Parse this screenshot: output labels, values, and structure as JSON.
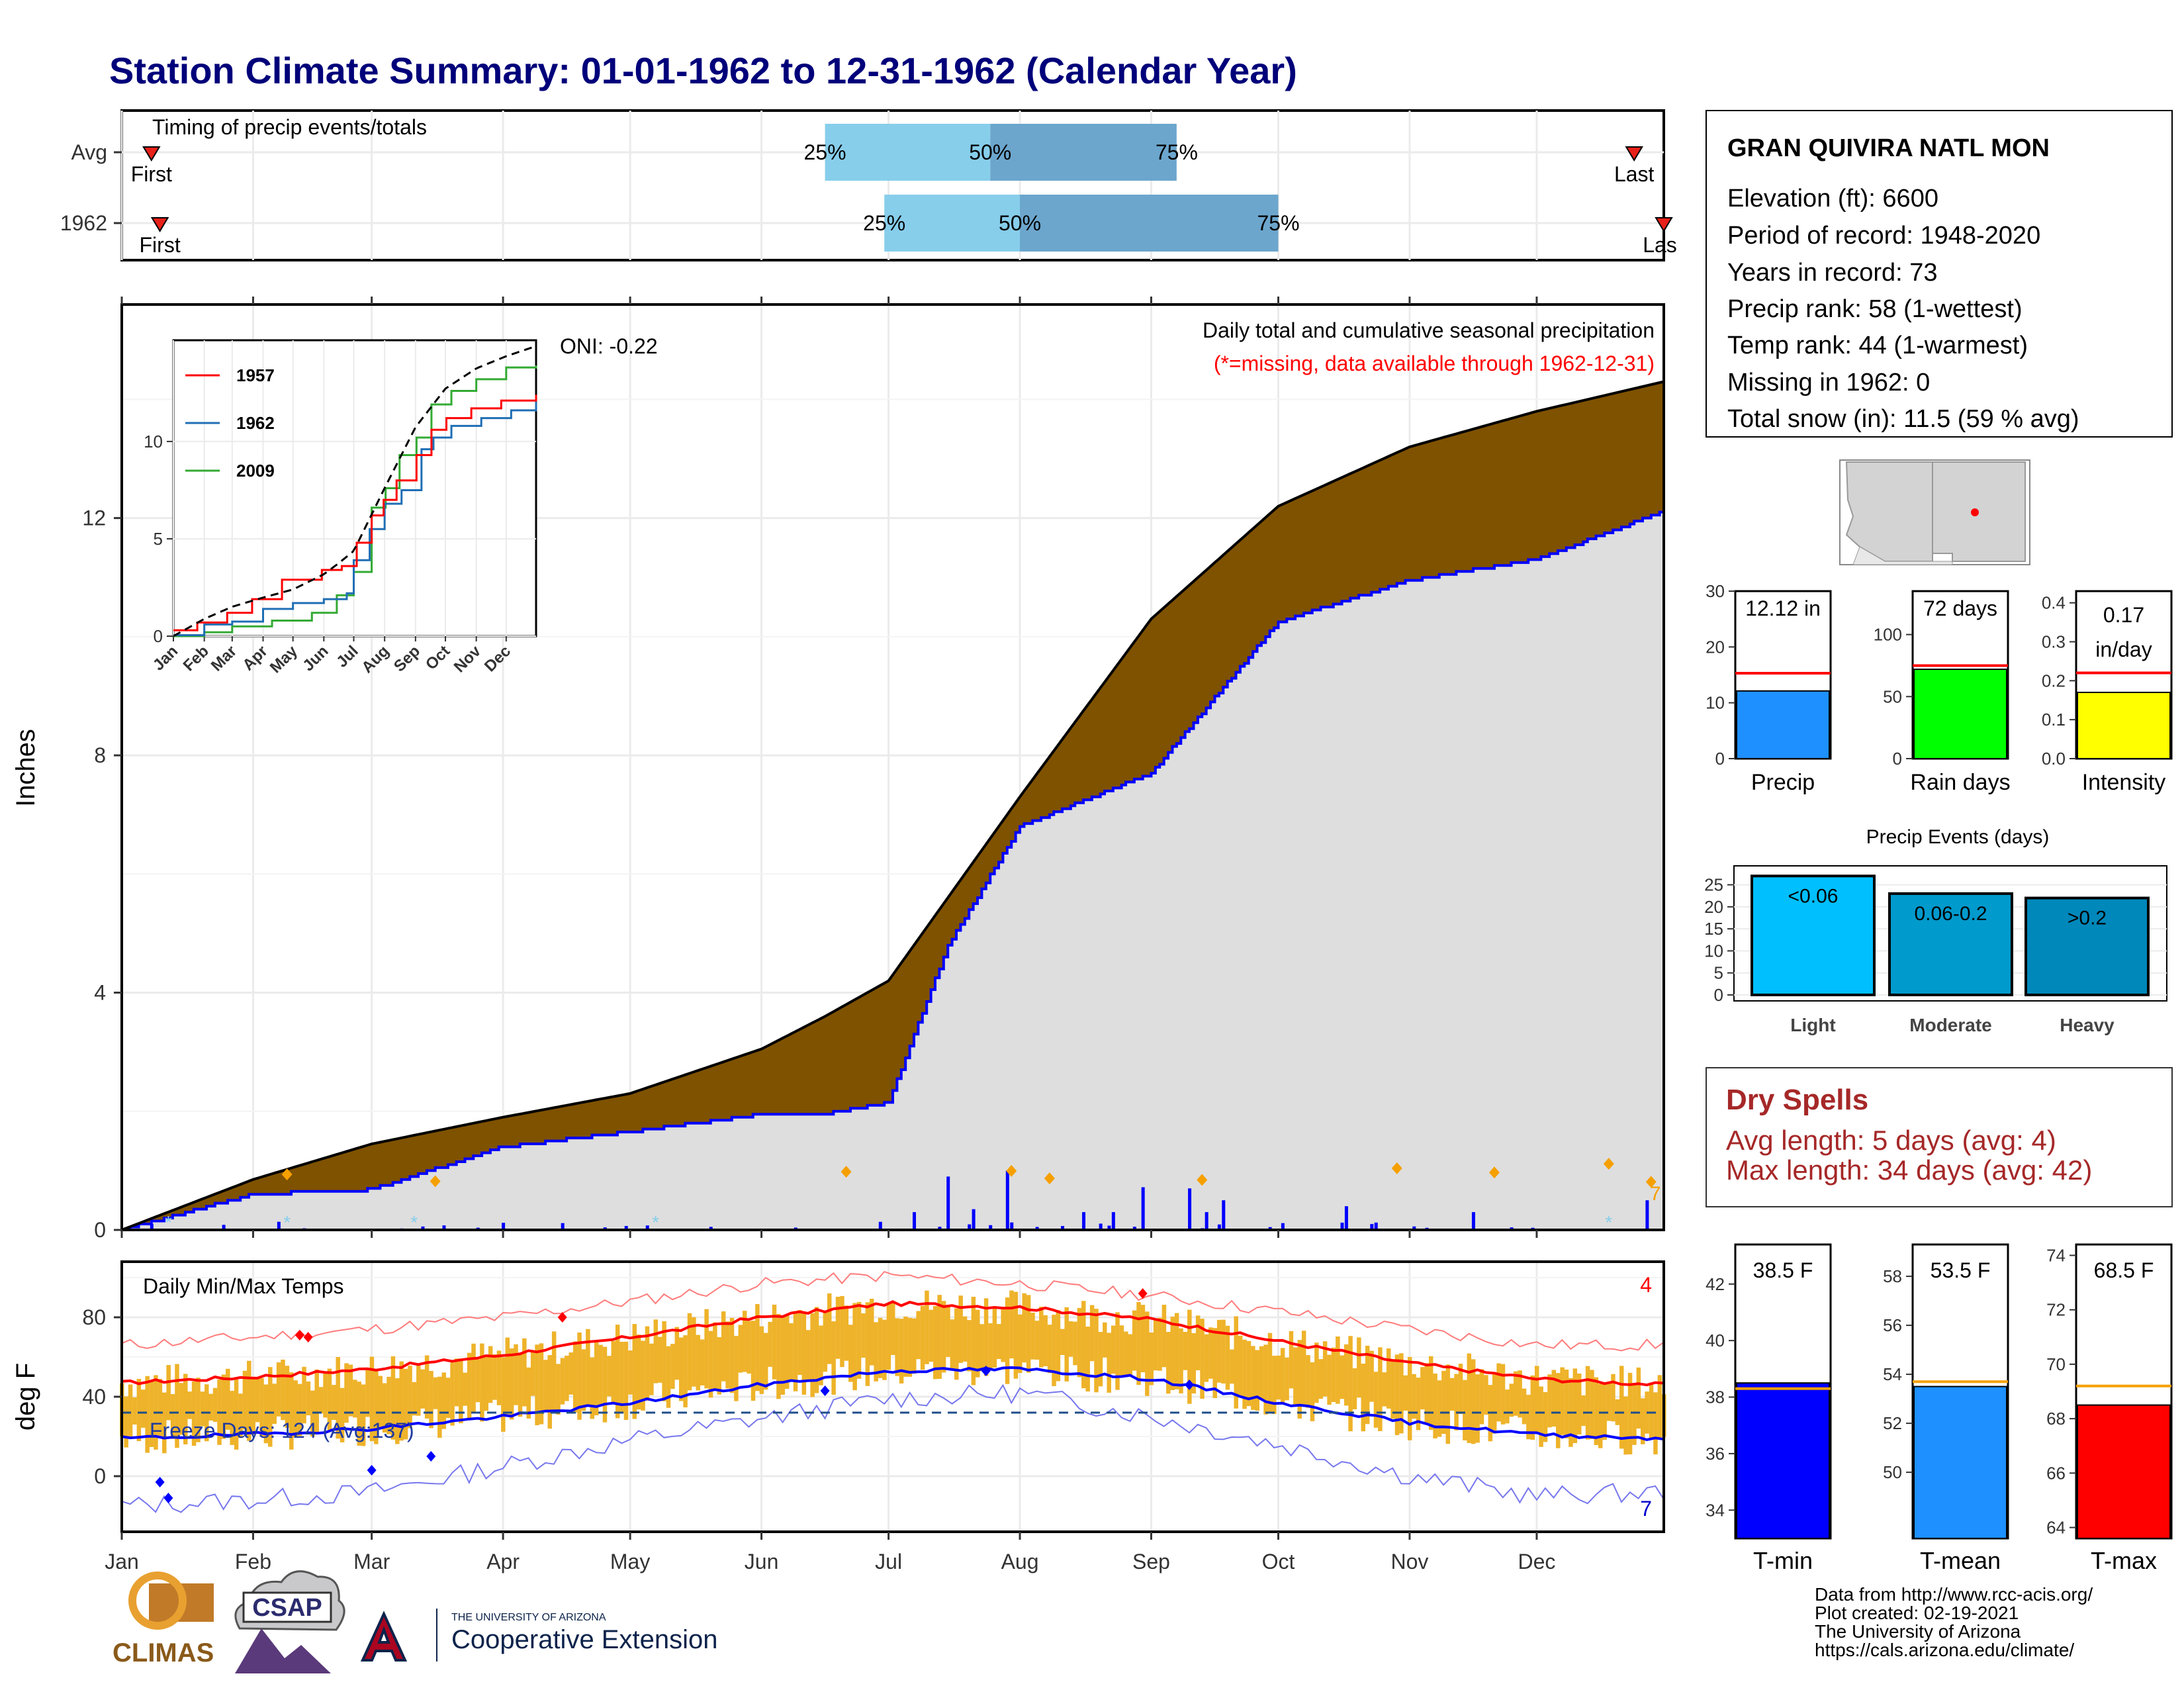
{
  "page_title": "Station Climate Summary: 01-01-1962 to 12-31-1962 (Calendar Year)",
  "colors": {
    "title": "#00007a",
    "brown": "#7f5200",
    "grey_fill": "#dedede",
    "blue": "#0000ff",
    "red": "#ff0000",
    "orange": "#f5a000",
    "temp_bar": "#eeb32a",
    "dark_red": "#a62828",
    "precip_bar": "#1e90ff",
    "rain_bar": "#00ff00",
    "intensity_bar": "#ffff00",
    "light_bar": "#00bfff",
    "moderate_bar": "#009acd",
    "heavy_bar": "#0088bb",
    "tmin_bar": "#0000ff",
    "tmean_bar": "#1e90ff",
    "tmax_bar": "#ff0000",
    "timing_light": "#87ceeb",
    "timing_dark": "#6ca6cd"
  },
  "station": {
    "name": "GRAN QUIVIRA NATL MON",
    "lines": [
      "Elevation (ft): 6600",
      "Period of record: 1948-2020",
      "Years in record: 73",
      "Precip rank: 58 (1-wettest)",
      "Temp rank: 44 (1-warmest)",
      "Missing in 1962: 0",
      "Total snow (in): 11.5 (59 % avg)"
    ]
  },
  "months": [
    "Jan",
    "Feb",
    "Mar",
    "Apr",
    "May",
    "Jun",
    "Jul",
    "Aug",
    "Sep",
    "Oct",
    "Nov",
    "Dec"
  ],
  "timing": {
    "title": "Timing of precip events/totals",
    "rows": [
      {
        "label": "Avg",
        "first_label": "First",
        "last_label": "Last",
        "first_doy": 8,
        "last_doy": 358,
        "q25_doy": 167,
        "q50_doy": 206,
        "q75_doy": 250,
        "q25": "25%",
        "q50": "50%",
        "q75": "75%"
      },
      {
        "label": "1962",
        "first_label": "First",
        "last_label": "Las",
        "first_doy": 10,
        "last_doy": 365,
        "q25_doy": 181,
        "q50_doy": 213,
        "q75_doy": 274,
        "q25": "25%",
        "q50": "50%",
        "q75": "75%"
      }
    ]
  },
  "precip": {
    "ylabel": "Inches",
    "title": "Daily total and cumulative seasonal precipitation",
    "subtitle": "(*=missing, data available through 1962-12-31)",
    "oni": "ONI: -0.22",
    "inset_series": [
      {
        "name": "1957",
        "color": "#ff0000"
      },
      {
        "name": "1962",
        "color": "#1f6eb4"
      },
      {
        "name": "2009",
        "color": "#33aa33"
      }
    ],
    "inset_month_labels": [
      "Jan",
      "Feb",
      "Mar",
      "Apr",
      "May",
      "Jun",
      "Jul",
      "Aug",
      "Sep",
      "Oct",
      "Nov",
      "Dec"
    ]
  },
  "temps": {
    "ylabel": "deg F",
    "title": "Daily Min/Max Temps",
    "freeze_label": "Freeze Days: 124 (Avg:137)",
    "count_top": "4",
    "count_bottom": "7"
  },
  "summary_bars": [
    {
      "label": "Precip",
      "value_text": "12.12 in",
      "value": 12.12,
      "avg": 15.3,
      "ymax": 30,
      "ticks": [
        "0",
        "10",
        "20",
        "30"
      ]
    },
    {
      "label": "Rain days",
      "value_text": "72 days",
      "value": 72,
      "avg": 75,
      "ymax": 135,
      "ticks": [
        "0",
        "50",
        "100"
      ]
    },
    {
      "label": "Intensity",
      "value_text": "0.17 in/day",
      "value": 0.17,
      "avg": 0.22,
      "ymax": 0.43,
      "ticks": [
        "0.0",
        "0.1",
        "0.2",
        "0.3",
        "0.4"
      ]
    }
  ],
  "events": {
    "title": "Precip Events (days)",
    "categories": [
      "Light",
      "Moderate",
      "Heavy"
    ],
    "values": [
      27,
      23,
      22
    ],
    "labels": [
      "<0.06",
      "0.06-0.2",
      ">0.2"
    ],
    "ticks": [
      "0",
      "5",
      "10",
      "15",
      "20",
      "25"
    ]
  },
  "dry_spells": {
    "title": "Dry Spells",
    "avg_line": "Avg length: 5 days (avg: 4)",
    "max_line": "Max length: 34 days (avg: 42)"
  },
  "temp_summary": [
    {
      "label": "T-min",
      "value_text": "38.5 F",
      "value": 38.5,
      "avg": 38.3,
      "ymin": 33.0,
      "ymax": 43.4,
      "ticks": [
        "34",
        "36",
        "38",
        "40",
        "42"
      ]
    },
    {
      "label": "T-mean",
      "value_text": "53.5 F",
      "value": 53.5,
      "avg": 53.7,
      "ymin": 47.3,
      "ymax": 59.3,
      "ticks": [
        "50",
        "52",
        "54",
        "56",
        "58"
      ]
    },
    {
      "label": "T-max",
      "value_text": "68.5 F",
      "value": 68.5,
      "avg": 69.2,
      "ymin": 63.6,
      "ymax": 74.4,
      "ticks": [
        "64",
        "66",
        "68",
        "70",
        "72",
        "74"
      ]
    }
  ],
  "footer": {
    "lines": [
      "Data from http://www.rcc-acis.org/",
      "Plot created: 02-19-2021",
      "The University of Arizona",
      "https://cals.arizona.edu/climate/"
    ]
  },
  "logos": {
    "climas": "CLIMAS",
    "csap": "CSAP",
    "ua_small": "THE UNIVERSITY OF ARIZONA",
    "ua_big": "Cooperative Extension"
  },
  "chart_data": [
    {
      "type": "bar",
      "title": "Timing of precip events/totals",
      "categories": [
        "Avg",
        "1962"
      ],
      "series": [
        {
          "name": "25%",
          "values": [
            167,
            181
          ]
        },
        {
          "name": "50%",
          "values": [
            206,
            213
          ]
        },
        {
          "name": "75%",
          "values": [
            250,
            274
          ]
        }
      ]
    },
    {
      "type": "area",
      "title": "Daily total and cumulative seasonal precipitation",
      "ylabel": "Inches",
      "ylim": [
        0,
        15.6
      ],
      "yticks": [
        0,
        4,
        8,
        12
      ],
      "x_doy": [
        1,
        32,
        60,
        91,
        121,
        152,
        167,
        182,
        196,
        213,
        244,
        274,
        305,
        335,
        365
      ],
      "series": [
        {
          "name": "Average cumulative",
          "values": [
            0,
            0.85,
            1.45,
            1.9,
            2.3,
            3.05,
            3.6,
            4.2,
            5.6,
            7.3,
            10.3,
            12.2,
            13.2,
            13.8,
            14.3
          ]
        },
        {
          "name": "1962 cumulative",
          "values": [
            0,
            0.6,
            0.68,
            1.4,
            1.65,
            1.95,
            1.95,
            2.15,
            4.8,
            6.8,
            7.7,
            10.25,
            10.95,
            11.3,
            12.12
          ]
        }
      ]
    },
    {
      "type": "line",
      "title": "Daily Min/Max Temps",
      "ylabel": "deg F",
      "ylim": [
        -28,
        108
      ],
      "yticks": [
        0,
        40,
        80
      ],
      "freeze_threshold": 32,
      "x_doy": [
        1,
        32,
        60,
        91,
        121,
        152,
        182,
        213,
        244,
        274,
        305,
        335,
        365
      ],
      "series": [
        {
          "name": "Normal max",
          "values": [
            47,
            50,
            54,
            61,
            70,
            80,
            87,
            85,
            79,
            68,
            57,
            49,
            46
          ]
        },
        {
          "name": "Normal min",
          "values": [
            19,
            21,
            24,
            30,
            37,
            46,
            53,
            54,
            49,
            37,
            27,
            21,
            19
          ]
        },
        {
          "name": "Record max",
          "values": [
            66,
            70,
            74,
            80,
            88,
            97,
            101,
            97,
            91,
            83,
            74,
            66,
            66
          ]
        },
        {
          "name": "Record min",
          "values": [
            -15,
            -12,
            -8,
            5,
            18,
            29,
            39,
            42,
            30,
            16,
            0,
            -10,
            -8
          ]
        }
      ]
    },
    {
      "type": "bar",
      "categories": [
        "Precip",
        "Rain days",
        "Intensity"
      ],
      "values": [
        12.12,
        72,
        0.17
      ]
    },
    {
      "type": "bar",
      "title": "Precip Events (days)",
      "categories": [
        "Light",
        "Moderate",
        "Heavy"
      ],
      "values": [
        27,
        23,
        22
      ]
    },
    {
      "type": "bar",
      "categories": [
        "T-min",
        "T-mean",
        "T-max"
      ],
      "values": [
        38.5,
        53.5,
        68.5
      ]
    }
  ]
}
